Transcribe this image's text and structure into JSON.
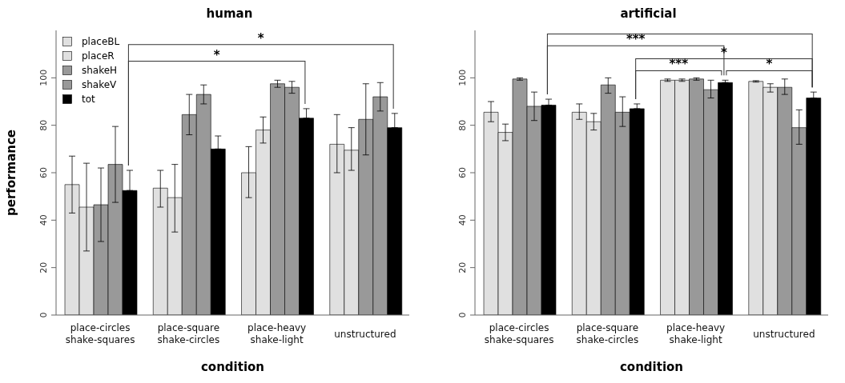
{
  "chart_data": [
    {
      "type": "bar",
      "title": "human",
      "xlabel": "condition",
      "ylabel": "performance",
      "categories": [
        "place-circles\nshake-squares",
        "place-square\nshake-circles",
        "place-heavy\nshake-light",
        "unstructured"
      ],
      "ylim": [
        0,
        120
      ],
      "yticks": [
        0,
        20,
        40,
        60,
        80,
        100
      ],
      "grid": false,
      "legend": "top left",
      "annotations": [
        "*",
        "*"
      ],
      "series": [
        {
          "name": "placeBL",
          "color": "#e0e0e0",
          "values": [
            55,
            53.5,
            60,
            72
          ],
          "errors": [
            [
              43,
              67
            ],
            [
              45.5,
              61
            ],
            [
              49.5,
              71
            ],
            [
              60,
              84.5
            ]
          ]
        },
        {
          "name": "placeR",
          "color": "#e0e0e0",
          "values": [
            45.5,
            49.5,
            78,
            69.5
          ],
          "errors": [
            [
              27,
              64
            ],
            [
              35,
              63.5
            ],
            [
              72.5,
              83.5
            ],
            [
              61,
              79
            ]
          ]
        },
        {
          "name": "shakeH",
          "color": "#999999",
          "values": [
            46.5,
            84.5,
            97.5,
            82.5
          ],
          "errors": [
            [
              31,
              62
            ],
            [
              76,
              93
            ],
            [
              96,
              99
            ],
            [
              67.5,
              97.5
            ]
          ]
        },
        {
          "name": "shakeV",
          "color": "#999999",
          "values": [
            63.5,
            93,
            96,
            92
          ],
          "errors": [
            [
              47.5,
              79.5
            ],
            [
              89,
              97
            ],
            [
              93.5,
              98.5
            ],
            [
              86,
              98
            ]
          ]
        },
        {
          "name": "tot",
          "color": "#000000",
          "values": [
            52.5,
            70,
            83,
            79
          ],
          "errors": [
            [
              52.5,
              61
            ],
            [
              70,
              75.5
            ],
            [
              83,
              87
            ],
            [
              79,
              85
            ]
          ]
        }
      ]
    },
    {
      "type": "bar",
      "title": "artificial",
      "xlabel": "condition",
      "categories": [
        "place-circles\nshake-squares",
        "place-square\nshake-circles",
        "place-heavy\nshake-light",
        "unstructured"
      ],
      "ylim": [
        0,
        120
      ],
      "yticks": [
        0,
        20,
        40,
        60,
        80,
        100
      ],
      "grid": false,
      "legend": false,
      "annotations": [
        "***",
        "*",
        "***",
        "*"
      ],
      "series": [
        {
          "color": "#e0e0e0",
          "values": [
            85.5,
            85.5,
            99,
            98.5
          ],
          "errors": [
            [
              81.5,
              90
            ],
            [
              82.5,
              89
            ],
            [
              98.5,
              99.5
            ],
            [
              98.2,
              98.8
            ]
          ]
        },
        {
          "color": "#e0e0e0",
          "values": [
            77,
            81.5,
            99,
            96
          ],
          "errors": [
            [
              73.5,
              80.5
            ],
            [
              78,
              85
            ],
            [
              98.5,
              99.5
            ],
            [
              94,
              97.5
            ]
          ]
        },
        {
          "color": "#999999",
          "values": [
            99.5,
            97,
            99.5,
            96
          ],
          "errors": [
            [
              99,
              100
            ],
            [
              93.5,
              100
            ],
            [
              99,
              100
            ],
            [
              93,
              99.5
            ]
          ]
        },
        {
          "color": "#999999",
          "values": [
            88,
            85.5,
            95,
            79
          ],
          "errors": [
            [
              82,
              94
            ],
            [
              79.5,
              92
            ],
            [
              91.5,
              99
            ],
            [
              72,
              86.5
            ]
          ]
        },
        {
          "color": "#000000",
          "values": [
            88.5,
            87,
            98,
            91.5
          ],
          "errors": [
            [
              88.5,
              91
            ],
            [
              87,
              89
            ],
            [
              98,
              99
            ],
            [
              91.5,
              94
            ]
          ]
        }
      ]
    }
  ]
}
